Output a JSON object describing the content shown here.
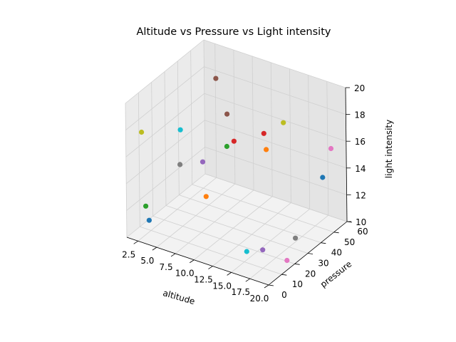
{
  "chart_data": {
    "type": "scatter",
    "projection": "3d",
    "title": "Altitude vs Pressure vs Light intensity",
    "xlabel": "altitude",
    "ylabel": "pressure",
    "zlabel": "light intensity",
    "xlim": [
      1,
      20
    ],
    "ylim": [
      0,
      60
    ],
    "zlim": [
      10,
      20
    ],
    "xticks": [
      "2.5",
      "5.0",
      "7.5",
      "10.0",
      "12.5",
      "15.0",
      "17.5",
      "20.0"
    ],
    "yticks": [
      "0",
      "10",
      "20",
      "30",
      "40",
      "50",
      "60"
    ],
    "zticks": [
      "10",
      "12",
      "14",
      "16",
      "18",
      "20"
    ],
    "grid": true,
    "points": [
      {
        "x": 3.5,
        "y": 3,
        "z": 11.5,
        "color": "#1f77b4"
      },
      {
        "x": 2.0,
        "y": 9,
        "z": 11.8,
        "color": "#2ca02c"
      },
      {
        "x": 8.0,
        "y": 21,
        "z": 12.7,
        "color": "#ff7f0e"
      },
      {
        "x": 4.0,
        "y": 24,
        "z": 14.1,
        "color": "#7f7f7f"
      },
      {
        "x": 6.0,
        "y": 30,
        "z": 14.2,
        "color": "#9467bd"
      },
      {
        "x": 2.5,
        "y": 33,
        "z": 15.7,
        "color": "#17becf"
      },
      {
        "x": 1.0,
        "y": 12,
        "z": 16.9,
        "color": "#bcbd22"
      },
      {
        "x": 3.8,
        "y": 53,
        "z": 18.2,
        "color": "#8c564b"
      },
      {
        "x": 6.5,
        "y": 46,
        "z": 16.6,
        "color": "#8c564b"
      },
      {
        "x": 9.8,
        "y": 27,
        "z": 16.3,
        "color": "#2ca02c"
      },
      {
        "x": 9.7,
        "y": 33,
        "z": 16.2,
        "color": "#d62728"
      },
      {
        "x": 13.2,
        "y": 36,
        "z": 17.2,
        "color": "#d62728"
      },
      {
        "x": 14.2,
        "y": 32,
        "z": 16.5,
        "color": "#ff7f0e"
      },
      {
        "x": 13.0,
        "y": 52,
        "z": 16.7,
        "color": "#bcbd22"
      },
      {
        "x": 14.8,
        "y": 13,
        "z": 10.5,
        "color": "#17becf"
      },
      {
        "x": 16.6,
        "y": 15,
        "z": 10.8,
        "color": "#9467bd"
      },
      {
        "x": 18.0,
        "y": 32,
        "z": 10.6,
        "color": "#7f7f7f"
      },
      {
        "x": 19.5,
        "y": 17,
        "z": 10.4,
        "color": "#e377c2"
      },
      {
        "x": 19.8,
        "y": 43,
        "z": 14.6,
        "color": "#1f77b4"
      },
      {
        "x": 19.9,
        "y": 49,
        "z": 16.3,
        "color": "#e377c2"
      }
    ]
  }
}
